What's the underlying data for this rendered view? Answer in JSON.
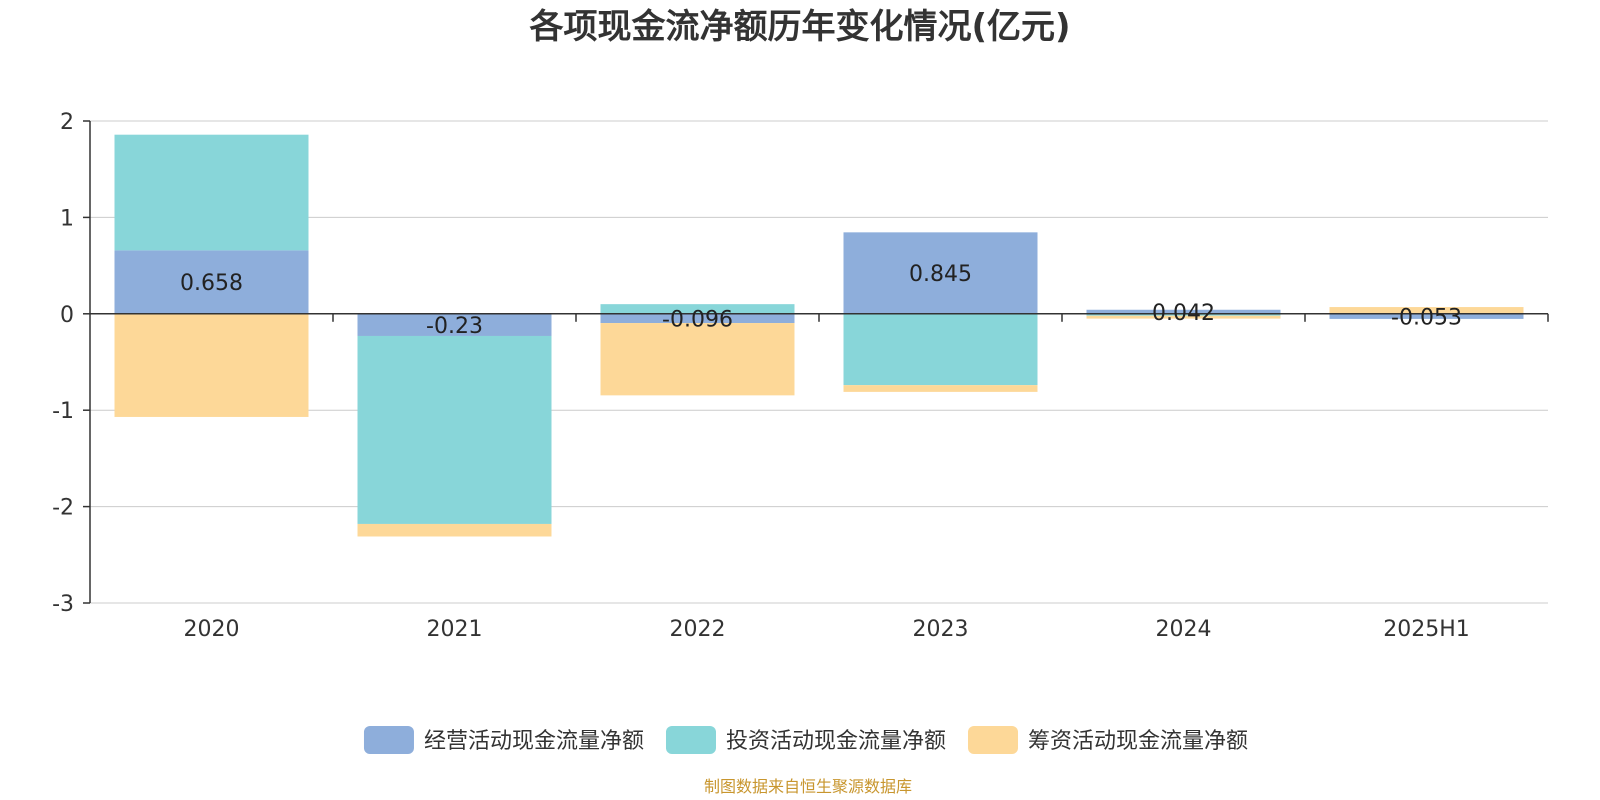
{
  "chart_data": {
    "type": "bar",
    "stacked": true,
    "title": "各项现金流净额历年变化情况(亿元)",
    "categories": [
      "2020",
      "2021",
      "2022",
      "2023",
      "2024",
      "2025H1"
    ],
    "series": [
      {
        "name": "经营活动现金流量净额",
        "color": "#8eaedb",
        "values": [
          0.658,
          -0.23,
          -0.096,
          0.845,
          0.042,
          -0.053
        ],
        "value_labels": [
          "0.658",
          "-0.23",
          "-0.096",
          "0.845",
          "0.042",
          "-0.053"
        ]
      },
      {
        "name": "投资活动现金流量净额",
        "color": "#88d6d9",
        "values": [
          1.2,
          -1.95,
          0.1,
          -0.74,
          -0.02,
          0.0
        ],
        "value_labels": []
      },
      {
        "name": "筹资活动现金流量净额",
        "color": "#fdd898",
        "values": [
          -1.07,
          -0.13,
          -0.75,
          -0.07,
          -0.03,
          0.07
        ],
        "value_labels": []
      }
    ],
    "ylim": [
      -3,
      2
    ],
    "yticks": [
      "2",
      "1",
      "0",
      "-1",
      "-2",
      "-3"
    ],
    "ytick_values": [
      2,
      1,
      0,
      -1,
      -2,
      -3
    ],
    "xlabel": "",
    "ylabel": "",
    "grid": true,
    "legend_position": "bottom"
  },
  "source_note": "制图数据来自恒生聚源数据库"
}
